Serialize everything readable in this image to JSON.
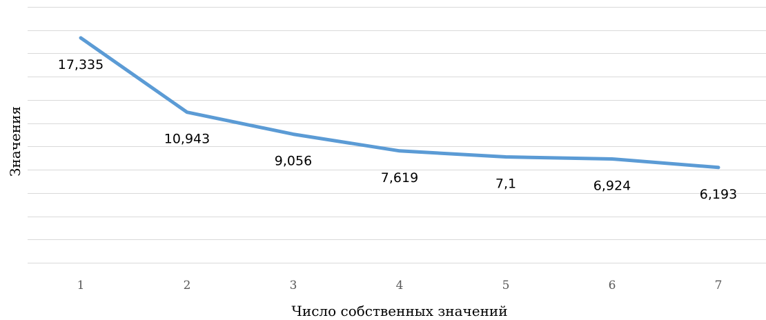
{
  "chart_data": {
    "type": "line",
    "xlabel": "Число собственных значений",
    "ylabel": "Значения",
    "categories": [
      "1",
      "2",
      "3",
      "4",
      "5",
      "6",
      "7"
    ],
    "series": [
      {
        "values": [
          17.335,
          10.943,
          9.056,
          7.619,
          7.1,
          6.924,
          6.193
        ],
        "labels": [
          "17,335",
          "10,943",
          "9,056",
          "7,619",
          "7,1",
          "6,924",
          "6,193"
        ],
        "color": "#5b9bd5"
      }
    ],
    "ylim": [
      -2,
      20
    ],
    "y_gridlines": [
      -2,
      0,
      2,
      4,
      6,
      8,
      10,
      12,
      14,
      16,
      18,
      20
    ],
    "grid": true,
    "show_y_tick_labels": false,
    "legend": "none"
  }
}
